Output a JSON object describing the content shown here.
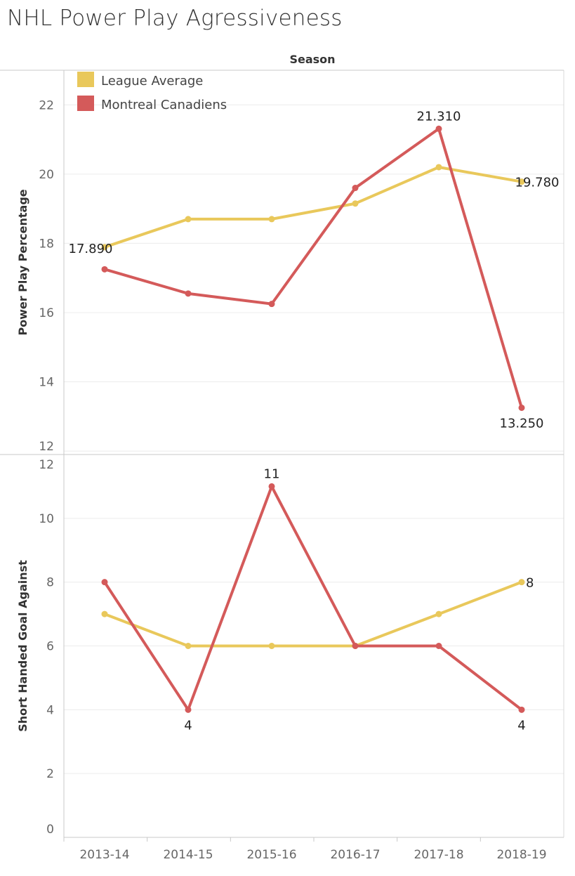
{
  "title": "NHL Power Play Agressiveness",
  "chart_data": {
    "type": "line",
    "column_header": "Season",
    "categories": [
      "2013-14",
      "2014-15",
      "2015-16",
      "2016-17",
      "2017-18",
      "2018-19"
    ],
    "legend": {
      "placement": "top-left",
      "entries": [
        {
          "name": "League Average",
          "color": "#E9C85B"
        },
        {
          "name": "Montreal Canadiens",
          "color": "#D45A5A"
        }
      ]
    },
    "panels": [
      {
        "ylabel": "Power Play Percentage",
        "ylim": [
          11.9,
          23.0
        ],
        "yticks": [
          12,
          14,
          16,
          18,
          20,
          22
        ],
        "series": [
          {
            "name": "League Average",
            "values": [
              17.89,
              18.7,
              18.7,
              19.15,
              20.2,
              19.78
            ]
          },
          {
            "name": "Montreal Canadiens",
            "values": [
              17.25,
              16.55,
              16.25,
              19.6,
              21.31,
              13.25
            ]
          }
        ],
        "data_labels": [
          {
            "series": 0,
            "index": 0,
            "text": "17.890",
            "pos": "left"
          },
          {
            "series": 0,
            "index": 5,
            "text": "19.780",
            "pos": "right"
          },
          {
            "series": 1,
            "index": 4,
            "text": "21.310",
            "pos": "above"
          },
          {
            "series": 1,
            "index": 5,
            "text": "13.250",
            "pos": "below"
          }
        ]
      },
      {
        "ylabel": "Short Handed Goal Against",
        "ylim": [
          0,
          12
        ],
        "yticks": [
          0,
          2,
          4,
          6,
          8,
          10,
          12
        ],
        "series": [
          {
            "name": "League Average",
            "values": [
              7,
              6,
              6,
              6,
              7,
              8
            ]
          },
          {
            "name": "Montreal Canadiens",
            "values": [
              8,
              4,
              11,
              6,
              6,
              4
            ]
          }
        ],
        "data_labels": [
          {
            "series": 1,
            "index": 2,
            "text": "11",
            "pos": "above"
          },
          {
            "series": 1,
            "index": 1,
            "text": "4",
            "pos": "below"
          },
          {
            "series": 1,
            "index": 5,
            "text": "4",
            "pos": "below"
          },
          {
            "series": 0,
            "index": 5,
            "text": "8",
            "pos": "right"
          }
        ]
      }
    ],
    "grid": true
  }
}
